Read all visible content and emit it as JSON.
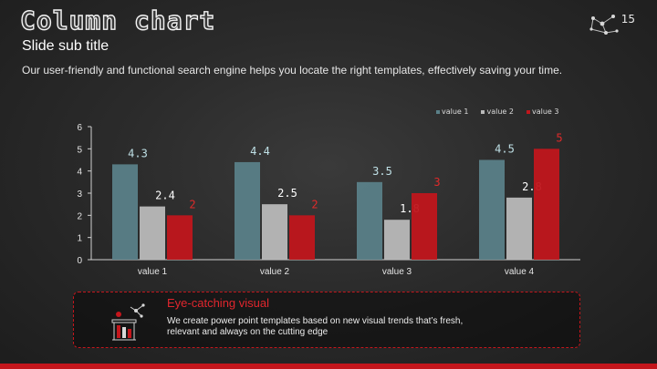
{
  "header": {
    "title": "Column chart",
    "page_number": "15",
    "subtitle": "Slide sub title",
    "description": "Our user-friendly and functional search engine helps you locate the right templates, effectively saving your  time."
  },
  "chart_data": {
    "type": "bar",
    "categories": [
      "value 1",
      "value 2",
      "value 3",
      "value 4"
    ],
    "series": [
      {
        "name": "value 1",
        "color": "#5a8088",
        "label_color": "#bfe0e6",
        "values": [
          4.3,
          4.4,
          3.5,
          4.5
        ]
      },
      {
        "name": "value 2",
        "color": "#b9b9b9",
        "label_color": "#ffffff",
        "values": [
          2.4,
          2.5,
          1.8,
          2.8
        ]
      },
      {
        "name": "value 3",
        "color": "#c0161c",
        "label_color": "#e02a2a",
        "values": [
          2,
          2,
          3,
          5
        ]
      }
    ],
    "ylim": [
      0,
      6
    ],
    "yticks": [
      "0",
      "1",
      "2",
      "3",
      "4",
      "5",
      "6"
    ],
    "title": "",
    "xlabel": "",
    "ylabel": "",
    "legend_position": "top-right",
    "grid": false
  },
  "callout": {
    "title": "Eye-catching visual",
    "body": "We create power point templates based on new visual trends that’s fresh, relevant and always on the cutting edge",
    "icon": "chalk-lab-icon"
  },
  "colors": {
    "accent": "#c4161c",
    "background": "#2b2b2b"
  }
}
